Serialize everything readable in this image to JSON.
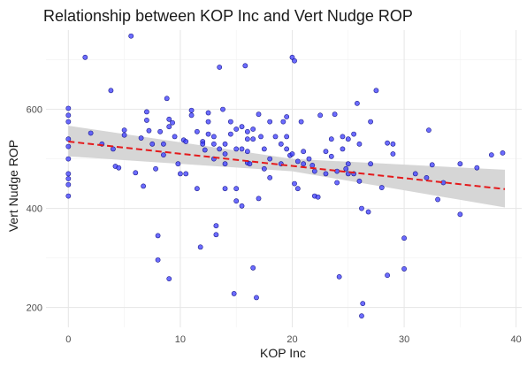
{
  "chart_data": {
    "type": "scatter",
    "title": "Relationship between KOP Inc and Vert Nudge ROP",
    "xlabel": "KOP Inc",
    "ylabel": "Vert Nudge ROP",
    "xlim": [
      -2,
      40.5
    ],
    "ylim": [
      160,
      760
    ],
    "xticks": [
      0,
      10,
      20,
      30,
      40
    ],
    "yticks": [
      200,
      400,
      600
    ],
    "grid": true,
    "point_color": "#3b3bff",
    "trend_color": "#e41a1c",
    "band_color": "#d4d4d4",
    "trend_line": {
      "x": [
        0,
        39
      ],
      "y": [
        535,
        439
      ]
    },
    "confidence_band": {
      "x": [
        0,
        20,
        39
      ],
      "lower": [
        505,
        475,
        402
      ],
      "upper": [
        567,
        500,
        478
      ]
    },
    "points": [
      [
        0,
        602
      ],
      [
        0,
        588
      ],
      [
        0,
        575
      ],
      [
        0,
        540
      ],
      [
        0,
        525
      ],
      [
        0,
        500
      ],
      [
        0,
        470
      ],
      [
        0,
        460
      ],
      [
        0,
        448
      ],
      [
        0,
        425
      ],
      [
        1.5,
        705
      ],
      [
        2,
        552
      ],
      [
        3,
        530
      ],
      [
        3.8,
        638
      ],
      [
        4,
        520
      ],
      [
        4.2,
        485
      ],
      [
        4.5,
        482
      ],
      [
        5,
        558
      ],
      [
        5,
        548
      ],
      [
        5.6,
        748
      ],
      [
        6,
        472
      ],
      [
        6.5,
        542
      ],
      [
        6.7,
        445
      ],
      [
        7,
        595
      ],
      [
        7,
        578
      ],
      [
        7.2,
        557
      ],
      [
        7.5,
        530
      ],
      [
        7.8,
        480
      ],
      [
        8,
        345
      ],
      [
        8,
        296
      ],
      [
        8.2,
        555
      ],
      [
        8.5,
        530
      ],
      [
        8.5,
        508
      ],
      [
        8.8,
        622
      ],
      [
        9,
        580
      ],
      [
        9,
        565
      ],
      [
        9,
        258
      ],
      [
        9.3,
        573
      ],
      [
        9.5,
        545
      ],
      [
        9.8,
        490
      ],
      [
        10,
        470
      ],
      [
        10.3,
        538
      ],
      [
        10.5,
        535
      ],
      [
        10.5,
        470
      ],
      [
        11,
        598
      ],
      [
        11,
        588
      ],
      [
        11.5,
        555
      ],
      [
        11.5,
        440
      ],
      [
        11.8,
        322
      ],
      [
        12,
        535
      ],
      [
        12,
        530
      ],
      [
        12.2,
        518
      ],
      [
        12.5,
        593
      ],
      [
        12.5,
        575
      ],
      [
        12.5,
        550
      ],
      [
        13,
        545
      ],
      [
        13,
        530
      ],
      [
        13,
        500
      ],
      [
        13.2,
        365
      ],
      [
        13.2,
        347
      ],
      [
        13.5,
        685
      ],
      [
        13.5,
        520
      ],
      [
        13.8,
        600
      ],
      [
        14,
        530
      ],
      [
        14,
        510
      ],
      [
        14,
        490
      ],
      [
        14,
        440
      ],
      [
        14.5,
        575
      ],
      [
        14.5,
        550
      ],
      [
        14.8,
        228
      ],
      [
        15,
        560
      ],
      [
        15,
        520
      ],
      [
        15,
        440
      ],
      [
        15,
        415
      ],
      [
        15.5,
        565
      ],
      [
        15.5,
        520
      ],
      [
        15.5,
        405
      ],
      [
        15.8,
        688
      ],
      [
        16,
        555
      ],
      [
        16,
        540
      ],
      [
        16,
        515
      ],
      [
        16,
        492
      ],
      [
        16.2,
        490
      ],
      [
        16.5,
        560
      ],
      [
        16.5,
        540
      ],
      [
        16.5,
        280
      ],
      [
        16.8,
        220
      ],
      [
        17,
        590
      ],
      [
        17,
        420
      ],
      [
        17.2,
        545
      ],
      [
        17.5,
        520
      ],
      [
        17.5,
        480
      ],
      [
        18,
        575
      ],
      [
        18,
        500
      ],
      [
        18,
        462
      ],
      [
        18.5,
        545
      ],
      [
        19,
        530
      ],
      [
        19,
        490
      ],
      [
        19.2,
        575
      ],
      [
        19.5,
        585
      ],
      [
        19.5,
        545
      ],
      [
        19.5,
        520
      ],
      [
        19.8,
        507
      ],
      [
        20,
        705
      ],
      [
        20,
        510
      ],
      [
        20.2,
        698
      ],
      [
        20.2,
        450
      ],
      [
        20.5,
        495
      ],
      [
        20.5,
        440
      ],
      [
        20.8,
        575
      ],
      [
        21,
        515
      ],
      [
        21,
        490
      ],
      [
        21.5,
        500
      ],
      [
        21.8,
        487
      ],
      [
        22,
        475
      ],
      [
        22,
        425
      ],
      [
        22.3,
        423
      ],
      [
        22.5,
        588
      ],
      [
        23,
        515
      ],
      [
        23,
        470
      ],
      [
        23.5,
        540
      ],
      [
        23.5,
        505
      ],
      [
        23.8,
        590
      ],
      [
        24,
        475
      ],
      [
        24,
        452
      ],
      [
        24.2,
        262
      ],
      [
        24.5,
        545
      ],
      [
        24.5,
        520
      ],
      [
        24.8,
        480
      ],
      [
        25,
        540
      ],
      [
        25,
        490
      ],
      [
        25,
        470
      ],
      [
        25.5,
        550
      ],
      [
        25.5,
        470
      ],
      [
        25.8,
        612
      ],
      [
        26,
        530
      ],
      [
        26,
        455
      ],
      [
        26.2,
        400
      ],
      [
        26.2,
        183
      ],
      [
        26.3,
        208
      ],
      [
        26.8,
        393
      ],
      [
        27,
        575
      ],
      [
        27,
        490
      ],
      [
        27.5,
        638
      ],
      [
        28,
        442
      ],
      [
        28.5,
        532
      ],
      [
        28.5,
        265
      ],
      [
        29,
        530
      ],
      [
        29,
        510
      ],
      [
        30,
        340
      ],
      [
        30,
        278
      ],
      [
        31,
        470
      ],
      [
        32,
        462
      ],
      [
        32.2,
        558
      ],
      [
        32.5,
        488
      ],
      [
        33,
        418
      ],
      [
        33.5,
        452
      ],
      [
        35,
        490
      ],
      [
        35,
        388
      ],
      [
        36.5,
        482
      ],
      [
        37.8,
        508
      ],
      [
        38.8,
        512
      ]
    ]
  }
}
